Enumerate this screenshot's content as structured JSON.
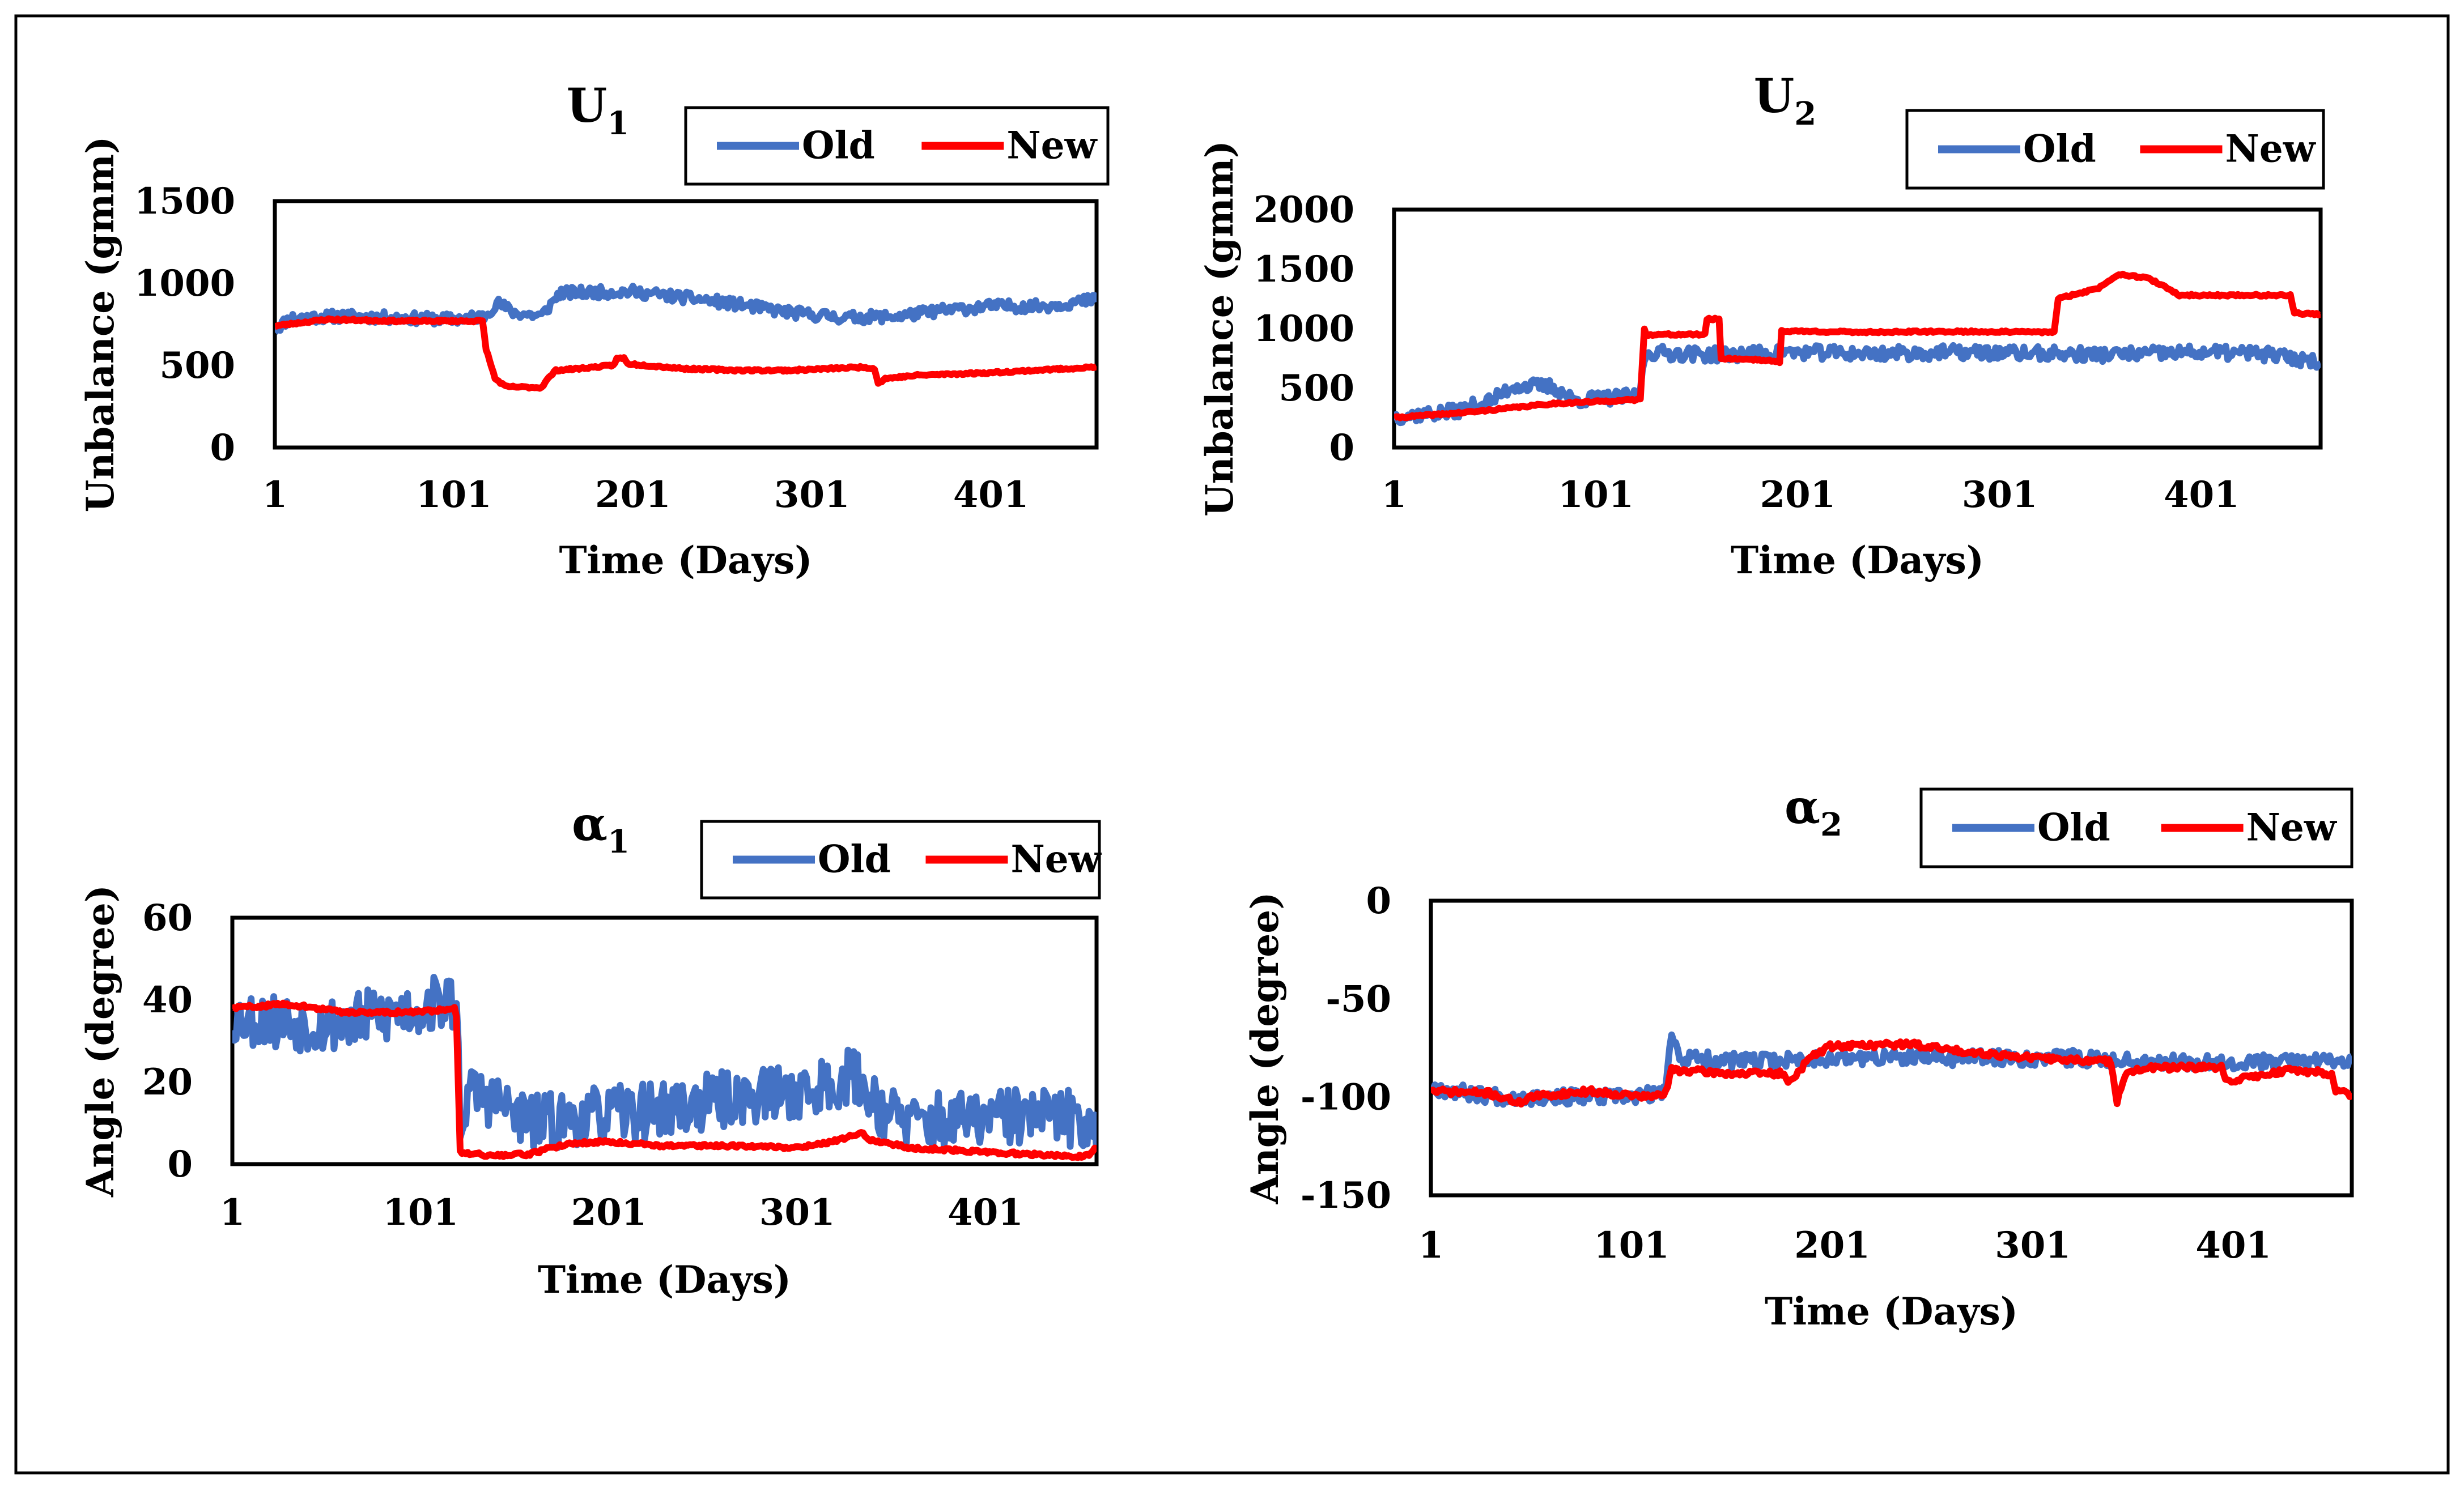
{
  "figure": {
    "colors": {
      "old": "#4472C4",
      "new": "#FF0000",
      "frame": "#000000"
    }
  },
  "chart_data": [
    {
      "id": "u1",
      "type": "line",
      "title": "U",
      "title_sub": "1",
      "xlabel": "Time (Days)",
      "ylabel": "Unbalance (gmm)",
      "xlim": [
        1,
        460
      ],
      "ylim": [
        0,
        1500
      ],
      "xticks": [
        1,
        101,
        201,
        301,
        401
      ],
      "yticks": [
        0,
        500,
        1000,
        1500
      ],
      "legend": {
        "position": "top-right",
        "entries": [
          "Old",
          "New"
        ]
      },
      "series": [
        {
          "name": "Old",
          "color": "#4472C4",
          "noise": 35,
          "seed": 11,
          "points": [
            [
              1,
              720
            ],
            [
              10,
              790
            ],
            [
              40,
              800
            ],
            [
              70,
              790
            ],
            [
              100,
              780
            ],
            [
              118,
              800
            ],
            [
              125,
              880
            ],
            [
              135,
              820
            ],
            [
              150,
              800
            ],
            [
              160,
              940
            ],
            [
              200,
              950
            ],
            [
              240,
              900
            ],
            [
              260,
              870
            ],
            [
              290,
              820
            ],
            [
              320,
              790
            ],
            [
              350,
              800
            ],
            [
              370,
              830
            ],
            [
              400,
              860
            ],
            [
              430,
              860
            ],
            [
              460,
              900
            ]
          ]
        },
        {
          "name": "New",
          "color": "#FF0000",
          "noise": 6,
          "seed": 23,
          "points": [
            [
              1,
              740
            ],
            [
              30,
              780
            ],
            [
              70,
              770
            ],
            [
              117,
              770
            ],
            [
              119,
              600
            ],
            [
              124,
              420
            ],
            [
              130,
              370
            ],
            [
              150,
              365
            ],
            [
              152,
              400
            ],
            [
              158,
              470
            ],
            [
              170,
              480
            ],
            [
              190,
              500
            ],
            [
              192,
              540
            ],
            [
              196,
              545
            ],
            [
              198,
              510
            ],
            [
              230,
              480
            ],
            [
              260,
              470
            ],
            [
              290,
              470
            ],
            [
              330,
              490
            ],
            [
              336,
              480
            ],
            [
              338,
              390
            ],
            [
              342,
              420
            ],
            [
              360,
              440
            ],
            [
              400,
              455
            ],
            [
              460,
              490
            ]
          ]
        }
      ]
    },
    {
      "id": "u2",
      "type": "line",
      "title": "U",
      "title_sub": "2",
      "xlabel": "Time (Days)",
      "ylabel": "Unbalance (gmm)",
      "xlim": [
        1,
        460
      ],
      "ylim": [
        0,
        2000
      ],
      "xticks": [
        1,
        101,
        201,
        301,
        401
      ],
      "yticks": [
        0,
        500,
        1000,
        1500,
        2000
      ],
      "legend": {
        "position": "top-right",
        "entries": [
          "Old",
          "New"
        ]
      },
      "series": [
        {
          "name": "Old",
          "color": "#4472C4",
          "noise": 60,
          "seed": 37,
          "points": [
            [
              1,
              260
            ],
            [
              30,
              300
            ],
            [
              50,
              400
            ],
            [
              60,
              520
            ],
            [
              80,
              510
            ],
            [
              90,
              400
            ],
            [
              110,
              420
            ],
            [
              122,
              430
            ],
            [
              126,
              800
            ],
            [
              160,
              780
            ],
            [
              200,
              800
            ],
            [
              240,
              790
            ],
            [
              280,
              800
            ],
            [
              320,
              790
            ],
            [
              360,
              780
            ],
            [
              400,
              800
            ],
            [
              430,
              790
            ],
            [
              460,
              720
            ]
          ]
        },
        {
          "name": "New",
          "color": "#FF0000",
          "noise": 8,
          "seed": 41,
          "points": [
            [
              1,
              250
            ],
            [
              40,
              300
            ],
            [
              80,
              370
            ],
            [
              120,
              400
            ],
            [
              123,
              410
            ],
            [
              125,
              1000
            ],
            [
              126,
              950
            ],
            [
              155,
              950
            ],
            [
              156,
              1080
            ],
            [
              162,
              1080
            ],
            [
              163,
              750
            ],
            [
              180,
              740
            ],
            [
              192,
              720
            ],
            [
              193,
              980
            ],
            [
              230,
              970
            ],
            [
              280,
              975
            ],
            [
              328,
              970
            ],
            [
              330,
              1250
            ],
            [
              350,
              1340
            ],
            [
              360,
              1460
            ],
            [
              375,
              1420
            ],
            [
              385,
              1330
            ],
            [
              390,
              1280
            ],
            [
              445,
              1280
            ],
            [
              447,
              1130
            ],
            [
              460,
              1120
            ]
          ]
        }
      ]
    },
    {
      "id": "a1",
      "type": "line",
      "title": "α",
      "title_sub": "1",
      "xlabel": "Time (Days)",
      "ylabel": "Angle (degree)",
      "xlim": [
        1,
        460
      ],
      "ylim": [
        0,
        60
      ],
      "xticks": [
        1,
        101,
        201,
        301,
        401
      ],
      "yticks": [
        0,
        20,
        40,
        60
      ],
      "legend": {
        "position": "top-right",
        "entries": [
          "Old",
          "New"
        ]
      },
      "series": [
        {
          "name": "Old",
          "color": "#4472C4",
          "noise": 7,
          "seed": 53,
          "points": [
            [
              1,
              36
            ],
            [
              20,
              35
            ],
            [
              50,
              34
            ],
            [
              80,
              36
            ],
            [
              100,
              38
            ],
            [
              115,
              40
            ],
            [
              120,
              38
            ],
            [
              122,
              12
            ],
            [
              130,
              18
            ],
            [
              145,
              14
            ],
            [
              160,
              10
            ],
            [
              200,
              12
            ],
            [
              240,
              14
            ],
            [
              280,
              17
            ],
            [
              310,
              18
            ],
            [
              330,
              22
            ],
            [
              345,
              14
            ],
            [
              360,
              10
            ],
            [
              400,
              11
            ],
            [
              430,
              12
            ],
            [
              460,
              10
            ]
          ]
        },
        {
          "name": "New",
          "color": "#FF0000",
          "noise": 0.4,
          "seed": 59,
          "points": [
            [
              1,
              38
            ],
            [
              30,
              39
            ],
            [
              60,
              37
            ],
            [
              100,
              37
            ],
            [
              119,
              38
            ],
            [
              120,
              36
            ],
            [
              122,
              3
            ],
            [
              140,
              2
            ],
            [
              160,
              2.5
            ],
            [
              170,
              4
            ],
            [
              180,
              5
            ],
            [
              200,
              5.5
            ],
            [
              230,
              4.5
            ],
            [
              270,
              4.5
            ],
            [
              300,
              4
            ],
            [
              320,
              5.5
            ],
            [
              335,
              7.5
            ],
            [
              340,
              6
            ],
            [
              360,
              4
            ],
            [
              400,
              3
            ],
            [
              440,
              2
            ],
            [
              455,
              2
            ],
            [
              460,
              4
            ]
          ]
        }
      ]
    },
    {
      "id": "a2",
      "type": "line",
      "title": "α",
      "title_sub": "2",
      "xlabel": "Time (Days)",
      "ylabel": "Angle (degree)",
      "xlim": [
        1,
        460
      ],
      "ylim": [
        -150,
        0
      ],
      "xticks": [
        1,
        101,
        201,
        301,
        401
      ],
      "yticks": [
        0,
        -50,
        -100,
        -150
      ],
      "legend": {
        "position": "top-right",
        "entries": [
          "Old",
          "New"
        ]
      },
      "series": [
        {
          "name": "Old",
          "color": "#4472C4",
          "noise": 4,
          "seed": 67,
          "points": [
            [
              1,
              -95
            ],
            [
              20,
              -98
            ],
            [
              40,
              -100
            ],
            [
              60,
              -100
            ],
            [
              100,
              -100
            ],
            [
              118,
              -98
            ],
            [
              121,
              -65
            ],
            [
              125,
              -80
            ],
            [
              160,
              -82
            ],
            [
              200,
              -80
            ],
            [
              240,
              -80
            ],
            [
              280,
              -80
            ],
            [
              320,
              -80
            ],
            [
              360,
              -82
            ],
            [
              400,
              -82
            ],
            [
              440,
              -82
            ],
            [
              460,
              -80
            ]
          ]
        },
        {
          "name": "New",
          "color": "#FF0000",
          "noise": 1.5,
          "seed": 71,
          "points": [
            [
              1,
              -97
            ],
            [
              30,
              -98
            ],
            [
              45,
              -103
            ],
            [
              50,
              -100
            ],
            [
              80,
              -97
            ],
            [
              110,
              -100
            ],
            [
              118,
              -98
            ],
            [
              121,
              -86
            ],
            [
              150,
              -88
            ],
            [
              175,
              -88
            ],
            [
              180,
              -92
            ],
            [
              190,
              -80
            ],
            [
              200,
              -74
            ],
            [
              240,
              -73
            ],
            [
              260,
              -76
            ],
            [
              300,
              -80
            ],
            [
              340,
              -82
            ],
            [
              343,
              -102
            ],
            [
              347,
              -88
            ],
            [
              360,
              -85
            ],
            [
              395,
              -85
            ],
            [
              397,
              -92
            ],
            [
              430,
              -86
            ],
            [
              450,
              -88
            ],
            [
              452,
              -96
            ],
            [
              460,
              -100
            ]
          ]
        }
      ]
    }
  ]
}
